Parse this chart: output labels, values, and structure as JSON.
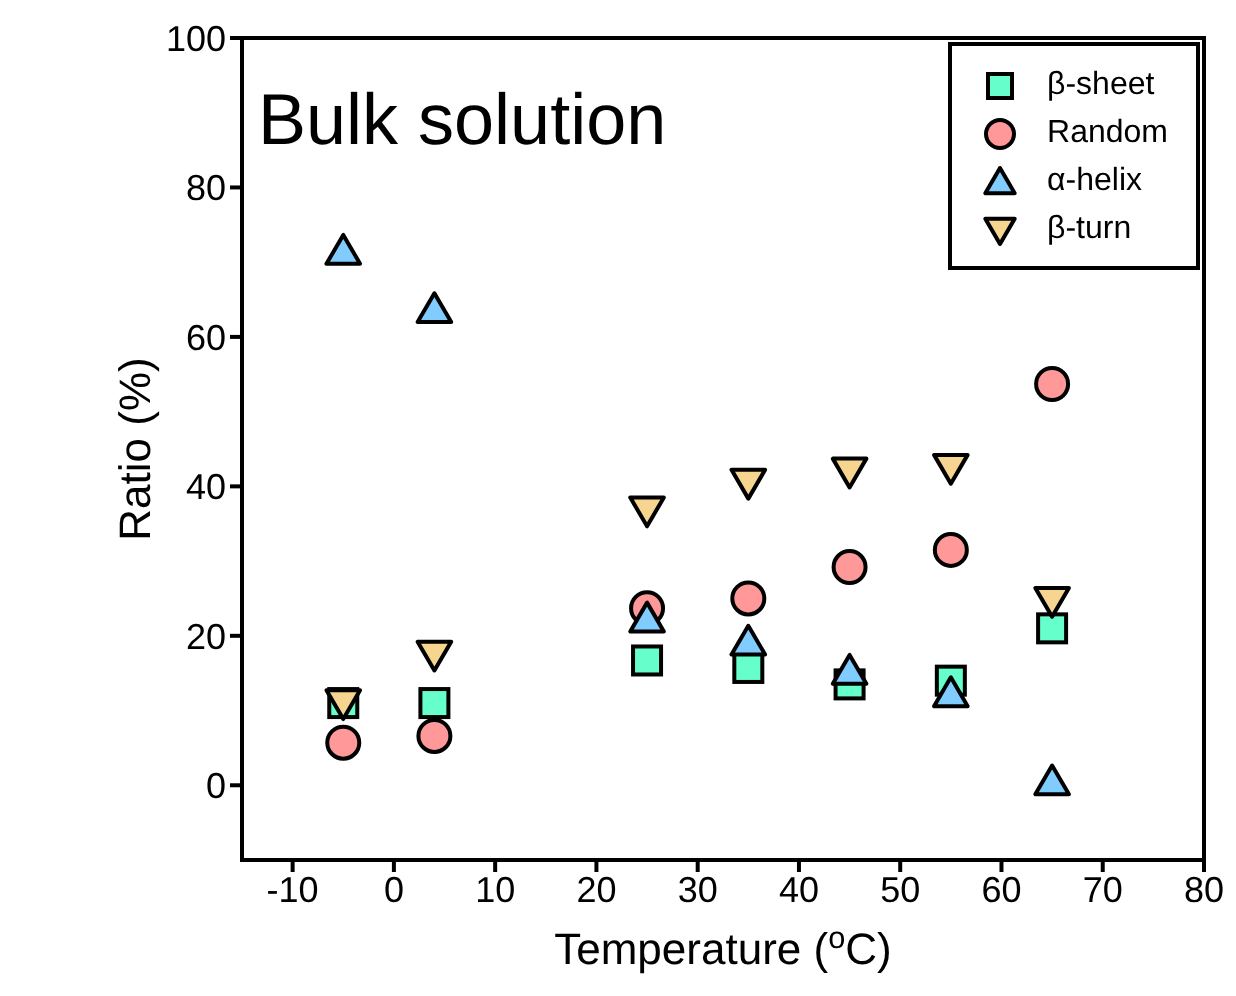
{
  "chart_data": {
    "type": "scatter",
    "xlabel": "Temperature ($^{o}$C)",
    "ylabel": "Ratio (%)",
    "annotations": [
      "Bulk solution"
    ],
    "x": [
      -5,
      4,
      25,
      35,
      45,
      55,
      65
    ],
    "xlim": [
      -15,
      80
    ],
    "xticks": [
      -10,
      0,
      10,
      20,
      30,
      40,
      50,
      60,
      70,
      80
    ],
    "ylim": [
      -10,
      100
    ],
    "yticks": [
      0,
      20,
      40,
      60,
      80,
      100
    ],
    "legend": "top right",
    "series": [
      {
        "name": "β-sheet",
        "color": "#66ffcc",
        "marker": "square",
        "values": [
          11,
          11,
          16.7,
          15.7,
          13.5,
          14,
          21
        ]
      },
      {
        "name": "Random",
        "color": "#ff9999",
        "marker": "circle",
        "values": [
          5.7,
          6.6,
          23.7,
          25,
          29.2,
          31.5,
          53.7
        ]
      },
      {
        "name": "α-helix",
        "color": "#80ccff",
        "marker": "triangle",
        "values": [
          71.5,
          63.7,
          22.3,
          19.2,
          15.3,
          12.3,
          0.5
        ]
      },
      {
        "name": "β-turn",
        "color": "#f5d58f",
        "marker": "triangle-down",
        "values": [
          11,
          17.5,
          36.8,
          40.5,
          42,
          42.5,
          24.7
        ]
      }
    ]
  }
}
